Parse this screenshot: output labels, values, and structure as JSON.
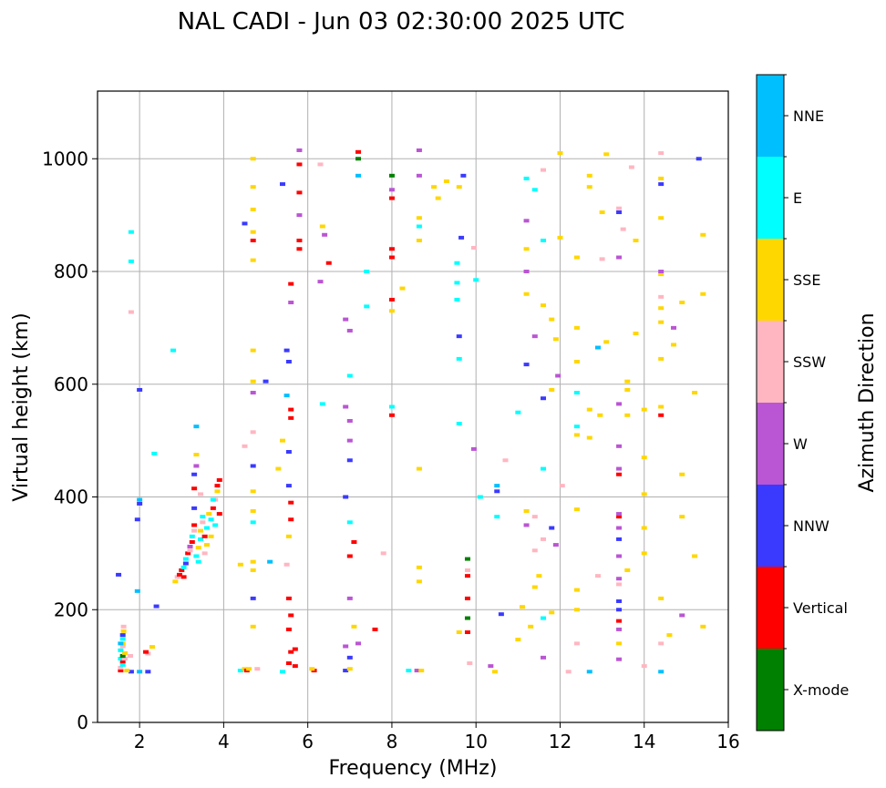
{
  "chart_data": {
    "type": "scatter",
    "title": "NAL CADI - Jun 03 02:30:00 2025 UTC",
    "xlabel": "Frequency (MHz)",
    "ylabel": "Virtual height (km)",
    "xlim": [
      1,
      16
    ],
    "ylim": [
      0,
      1120
    ],
    "xticks": [
      2,
      4,
      6,
      8,
      10,
      12,
      14,
      16
    ],
    "yticks": [
      0,
      200,
      400,
      600,
      800,
      1000
    ],
    "grid": true,
    "colorbar": {
      "label": "Azimuth Direction",
      "categories": [
        "X-mode",
        "Vertical",
        "NNW",
        "W",
        "SSW",
        "SSE",
        "E",
        "NNE"
      ],
      "colors": [
        "#008000",
        "#ff0000",
        "#3a3aff",
        "#ba55d3",
        "#ffb6c1",
        "#ffd700",
        "#00ffff",
        "#00bfff"
      ]
    },
    "point_format": [
      "frequency_MHz",
      "height_km",
      "category_index"
    ],
    "points": [
      [
        1.55,
        92,
        1
      ],
      [
        1.55,
        97,
        4
      ],
      [
        1.6,
        102,
        6
      ],
      [
        1.6,
        108,
        1
      ],
      [
        1.55,
        113,
        6
      ],
      [
        1.65,
        113,
        4
      ],
      [
        1.6,
        118,
        0
      ],
      [
        1.65,
        123,
        5
      ],
      [
        1.55,
        128,
        6
      ],
      [
        1.6,
        135,
        4
      ],
      [
        1.6,
        140,
        5
      ],
      [
        1.55,
        140,
        7
      ],
      [
        1.6,
        148,
        6
      ],
      [
        1.6,
        155,
        2
      ],
      [
        1.62,
        162,
        5
      ],
      [
        1.62,
        170,
        4
      ],
      [
        1.78,
        118,
        4
      ],
      [
        1.8,
        90,
        2
      ],
      [
        1.7,
        92,
        5
      ],
      [
        2.0,
        90,
        7
      ],
      [
        2.2,
        90,
        2
      ],
      [
        2.2,
        122,
        4
      ],
      [
        2.3,
        134,
        5
      ],
      [
        2.15,
        125,
        1
      ],
      [
        1.5,
        262,
        2
      ],
      [
        1.95,
        233,
        7
      ],
      [
        2.4,
        206,
        2
      ],
      [
        1.95,
        360,
        2
      ],
      [
        2.0,
        388,
        2
      ],
      [
        2.0,
        395,
        7
      ],
      [
        2.0,
        590,
        2
      ],
      [
        1.8,
        818,
        6
      ],
      [
        1.8,
        870,
        6
      ],
      [
        1.8,
        728,
        4
      ],
      [
        2.35,
        477,
        6
      ],
      [
        2.8,
        660,
        6
      ],
      [
        2.85,
        250,
        5
      ],
      [
        2.9,
        258,
        4
      ],
      [
        2.95,
        262,
        1
      ],
      [
        3.0,
        270,
        1
      ],
      [
        3.05,
        275,
        6
      ],
      [
        3.1,
        282,
        2
      ],
      [
        3.1,
        290,
        6
      ],
      [
        3.15,
        300,
        1
      ],
      [
        3.2,
        305,
        4
      ],
      [
        3.2,
        312,
        3
      ],
      [
        3.25,
        320,
        1
      ],
      [
        3.25,
        330,
        6
      ],
      [
        3.3,
        340,
        4
      ],
      [
        3.3,
        350,
        1
      ],
      [
        3.35,
        295,
        6
      ],
      [
        3.4,
        310,
        5
      ],
      [
        3.45,
        325,
        6
      ],
      [
        3.45,
        340,
        5
      ],
      [
        3.5,
        355,
        4
      ],
      [
        3.55,
        300,
        4
      ],
      [
        3.55,
        330,
        1
      ],
      [
        3.6,
        315,
        5
      ],
      [
        3.6,
        345,
        6
      ],
      [
        3.65,
        370,
        5
      ],
      [
        3.7,
        330,
        5
      ],
      [
        3.7,
        360,
        6
      ],
      [
        3.75,
        380,
        1
      ],
      [
        3.8,
        350,
        6
      ],
      [
        3.8,
        395,
        4
      ],
      [
        3.85,
        410,
        5
      ],
      [
        3.85,
        420,
        1
      ],
      [
        3.75,
        395,
        6
      ],
      [
        3.9,
        370,
        1
      ],
      [
        3.3,
        415,
        1
      ],
      [
        3.35,
        475,
        5
      ],
      [
        3.35,
        455,
        3
      ],
      [
        3.3,
        440,
        2
      ],
      [
        3.35,
        525,
        7
      ],
      [
        3.45,
        405,
        4
      ],
      [
        3.5,
        365,
        6
      ],
      [
        3.4,
        285,
        6
      ],
      [
        3.05,
        258,
        1
      ],
      [
        3.3,
        380,
        2
      ],
      [
        3.9,
        430,
        1
      ],
      [
        4.4,
        92,
        6
      ],
      [
        4.5,
        95,
        5
      ],
      [
        4.55,
        92,
        1
      ],
      [
        4.6,
        95,
        5
      ],
      [
        4.8,
        95,
        4
      ],
      [
        4.7,
        170,
        5
      ],
      [
        4.7,
        220,
        2
      ],
      [
        4.7,
        270,
        5
      ],
      [
        4.7,
        285,
        5
      ],
      [
        4.7,
        355,
        6
      ],
      [
        4.7,
        375,
        5
      ],
      [
        4.7,
        410,
        5
      ],
      [
        4.7,
        455,
        2
      ],
      [
        4.7,
        515,
        4
      ],
      [
        4.7,
        585,
        3
      ],
      [
        4.7,
        605,
        5
      ],
      [
        4.7,
        660,
        5
      ],
      [
        4.7,
        820,
        5
      ],
      [
        4.7,
        855,
        1
      ],
      [
        4.7,
        870,
        5
      ],
      [
        4.7,
        910,
        5
      ],
      [
        4.7,
        950,
        5
      ],
      [
        4.7,
        1000,
        5
      ],
      [
        4.5,
        885,
        2
      ],
      [
        4.5,
        490,
        4
      ],
      [
        4.4,
        280,
        5
      ],
      [
        5.0,
        605,
        2
      ],
      [
        5.1,
        285,
        7
      ],
      [
        5.4,
        90,
        6
      ],
      [
        5.55,
        105,
        1
      ],
      [
        5.6,
        125,
        1
      ],
      [
        5.55,
        165,
        1
      ],
      [
        5.6,
        190,
        1
      ],
      [
        5.55,
        220,
        1
      ],
      [
        5.5,
        280,
        4
      ],
      [
        5.55,
        330,
        5
      ],
      [
        5.6,
        360,
        1
      ],
      [
        5.6,
        390,
        1
      ],
      [
        5.55,
        420,
        2
      ],
      [
        5.55,
        480,
        2
      ],
      [
        5.6,
        540,
        1
      ],
      [
        5.6,
        555,
        1
      ],
      [
        5.5,
        580,
        7
      ],
      [
        5.55,
        640,
        2
      ],
      [
        5.5,
        660,
        2
      ],
      [
        5.6,
        745,
        3
      ],
      [
        5.6,
        778,
        1
      ],
      [
        5.8,
        840,
        1
      ],
      [
        5.8,
        855,
        1
      ],
      [
        5.8,
        900,
        3
      ],
      [
        5.8,
        940,
        1
      ],
      [
        5.8,
        990,
        1
      ],
      [
        5.8,
        1015,
        3
      ],
      [
        5.4,
        955,
        2
      ],
      [
        5.3,
        450,
        5
      ],
      [
        5.4,
        500,
        5
      ],
      [
        5.7,
        100,
        1
      ],
      [
        5.7,
        130,
        1
      ],
      [
        6.15,
        92,
        1
      ],
      [
        6.1,
        95,
        5
      ],
      [
        6.4,
        865,
        3
      ],
      [
        6.5,
        815,
        1
      ],
      [
        6.35,
        880,
        5
      ],
      [
        6.35,
        565,
        6
      ],
      [
        6.3,
        782,
        3
      ],
      [
        6.3,
        990,
        4
      ],
      [
        6.9,
        92,
        2
      ],
      [
        6.9,
        135,
        3
      ],
      [
        6.9,
        400,
        2
      ],
      [
        6.9,
        560,
        3
      ],
      [
        6.9,
        715,
        3
      ],
      [
        7.0,
        95,
        5
      ],
      [
        7.0,
        115,
        2
      ],
      [
        7.0,
        220,
        3
      ],
      [
        7.0,
        295,
        1
      ],
      [
        7.0,
        355,
        6
      ],
      [
        7.0,
        465,
        2
      ],
      [
        7.0,
        500,
        3
      ],
      [
        7.0,
        535,
        3
      ],
      [
        7.0,
        615,
        6
      ],
      [
        7.0,
        695,
        3
      ],
      [
        7.1,
        170,
        5
      ],
      [
        7.1,
        320,
        1
      ],
      [
        7.2,
        970,
        7
      ],
      [
        7.2,
        1000,
        0
      ],
      [
        7.2,
        1012,
        1
      ],
      [
        7.4,
        800,
        6
      ],
      [
        7.4,
        738,
        6
      ],
      [
        7.6,
        165,
        1
      ],
      [
        7.8,
        300,
        4
      ],
      [
        7.2,
        140,
        3
      ],
      [
        8.0,
        545,
        1
      ],
      [
        8.0,
        560,
        6
      ],
      [
        8.0,
        730,
        5
      ],
      [
        8.0,
        750,
        1
      ],
      [
        8.0,
        825,
        1
      ],
      [
        8.0,
        840,
        1
      ],
      [
        8.0,
        930,
        1
      ],
      [
        8.0,
        945,
        3
      ],
      [
        8.0,
        970,
        0
      ],
      [
        8.25,
        770,
        5
      ],
      [
        8.4,
        92,
        6
      ],
      [
        8.6,
        92,
        3
      ],
      [
        8.7,
        92,
        5
      ],
      [
        8.65,
        250,
        5
      ],
      [
        8.65,
        275,
        5
      ],
      [
        8.65,
        450,
        5
      ],
      [
        8.65,
        855,
        5
      ],
      [
        8.65,
        880,
        6
      ],
      [
        8.65,
        895,
        5
      ],
      [
        8.65,
        970,
        3
      ],
      [
        8.65,
        1015,
        3
      ],
      [
        9.1,
        930,
        5
      ],
      [
        9.0,
        950,
        5
      ],
      [
        9.3,
        960,
        5
      ],
      [
        9.6,
        160,
        5
      ],
      [
        9.6,
        530,
        6
      ],
      [
        9.6,
        645,
        6
      ],
      [
        9.6,
        685,
        2
      ],
      [
        9.55,
        750,
        6
      ],
      [
        9.55,
        780,
        6
      ],
      [
        9.55,
        815,
        6
      ],
      [
        9.65,
        860,
        2
      ],
      [
        9.6,
        950,
        5
      ],
      [
        9.7,
        970,
        2
      ],
      [
        9.85,
        105,
        4
      ],
      [
        9.8,
        160,
        1
      ],
      [
        9.8,
        220,
        1
      ],
      [
        9.8,
        260,
        1
      ],
      [
        9.8,
        270,
        4
      ],
      [
        9.8,
        290,
        0
      ],
      [
        9.8,
        185,
        0
      ],
      [
        9.95,
        485,
        3
      ],
      [
        9.95,
        842,
        4
      ],
      [
        10.0,
        785,
        6
      ],
      [
        10.1,
        400,
        6
      ],
      [
        10.35,
        100,
        3
      ],
      [
        10.45,
        90,
        5
      ],
      [
        10.5,
        365,
        6
      ],
      [
        10.5,
        410,
        2
      ],
      [
        10.5,
        420,
        7
      ],
      [
        10.6,
        192,
        2
      ],
      [
        10.7,
        465,
        4
      ],
      [
        11.0,
        147,
        5
      ],
      [
        11.0,
        550,
        6
      ],
      [
        11.1,
        205,
        5
      ],
      [
        11.2,
        635,
        2
      ],
      [
        11.3,
        170,
        5
      ],
      [
        11.2,
        350,
        3
      ],
      [
        11.2,
        375,
        5
      ],
      [
        11.2,
        760,
        5
      ],
      [
        11.2,
        800,
        3
      ],
      [
        11.2,
        840,
        5
      ],
      [
        11.2,
        890,
        3
      ],
      [
        11.2,
        965,
        6
      ],
      [
        11.4,
        240,
        5
      ],
      [
        11.4,
        305,
        4
      ],
      [
        11.4,
        365,
        4
      ],
      [
        11.5,
        260,
        5
      ],
      [
        11.4,
        685,
        3
      ],
      [
        11.4,
        945,
        6
      ],
      [
        11.6,
        115,
        3
      ],
      [
        11.6,
        185,
        6
      ],
      [
        11.6,
        325,
        4
      ],
      [
        11.6,
        450,
        6
      ],
      [
        11.6,
        575,
        2
      ],
      [
        11.6,
        740,
        5
      ],
      [
        11.6,
        855,
        6
      ],
      [
        11.6,
        980,
        4
      ],
      [
        11.8,
        195,
        5
      ],
      [
        11.8,
        345,
        2
      ],
      [
        11.8,
        590,
        5
      ],
      [
        11.8,
        715,
        5
      ],
      [
        11.9,
        315,
        3
      ],
      [
        11.95,
        615,
        3
      ],
      [
        11.9,
        680,
        5
      ],
      [
        12.0,
        860,
        5
      ],
      [
        12.05,
        420,
        4
      ],
      [
        12.0,
        1010,
        5
      ],
      [
        12.2,
        90,
        4
      ],
      [
        12.4,
        140,
        4
      ],
      [
        12.4,
        200,
        5
      ],
      [
        12.4,
        235,
        5
      ],
      [
        12.4,
        378,
        5
      ],
      [
        12.4,
        510,
        5
      ],
      [
        12.4,
        525,
        6
      ],
      [
        12.4,
        585,
        6
      ],
      [
        12.4,
        640,
        5
      ],
      [
        12.4,
        700,
        5
      ],
      [
        12.4,
        825,
        5
      ],
      [
        12.7,
        90,
        7
      ],
      [
        12.7,
        555,
        5
      ],
      [
        12.7,
        505,
        5
      ],
      [
        12.7,
        970,
        5
      ],
      [
        12.7,
        950,
        5
      ],
      [
        12.9,
        260,
        4
      ],
      [
        12.95,
        545,
        5
      ],
      [
        12.9,
        665,
        7
      ],
      [
        13.0,
        822,
        4
      ],
      [
        13.0,
        905,
        5
      ],
      [
        13.1,
        1008,
        5
      ],
      [
        13.1,
        675,
        5
      ],
      [
        13.4,
        112,
        3
      ],
      [
        13.4,
        140,
        5
      ],
      [
        13.4,
        165,
        3
      ],
      [
        13.4,
        180,
        1
      ],
      [
        13.4,
        200,
        2
      ],
      [
        13.4,
        215,
        2
      ],
      [
        13.4,
        245,
        4
      ],
      [
        13.4,
        255,
        3
      ],
      [
        13.4,
        295,
        3
      ],
      [
        13.4,
        325,
        2
      ],
      [
        13.4,
        345,
        3
      ],
      [
        13.4,
        365,
        1
      ],
      [
        13.4,
        370,
        3
      ],
      [
        13.4,
        440,
        1
      ],
      [
        13.4,
        450,
        3
      ],
      [
        13.4,
        490,
        3
      ],
      [
        13.4,
        565,
        3
      ],
      [
        13.4,
        825,
        3
      ],
      [
        13.4,
        905,
        2
      ],
      [
        13.4,
        912,
        4
      ],
      [
        13.6,
        270,
        5
      ],
      [
        13.6,
        545,
        5
      ],
      [
        13.6,
        590,
        5
      ],
      [
        13.6,
        605,
        5
      ],
      [
        13.5,
        875,
        4
      ],
      [
        13.7,
        985,
        4
      ],
      [
        13.8,
        690,
        5
      ],
      [
        13.8,
        855,
        5
      ],
      [
        14.0,
        100,
        4
      ],
      [
        14.0,
        300,
        5
      ],
      [
        14.0,
        345,
        5
      ],
      [
        14.0,
        405,
        5
      ],
      [
        14.0,
        470,
        5
      ],
      [
        14.0,
        555,
        5
      ],
      [
        14.4,
        90,
        7
      ],
      [
        14.4,
        220,
        5
      ],
      [
        14.4,
        140,
        4
      ],
      [
        14.4,
        545,
        1
      ],
      [
        14.4,
        560,
        5
      ],
      [
        14.4,
        645,
        5
      ],
      [
        14.4,
        710,
        5
      ],
      [
        14.4,
        735,
        5
      ],
      [
        14.4,
        755,
        4
      ],
      [
        14.4,
        795,
        5
      ],
      [
        14.4,
        800,
        3
      ],
      [
        14.4,
        895,
        5
      ],
      [
        14.4,
        955,
        2
      ],
      [
        14.4,
        965,
        5
      ],
      [
        14.4,
        1010,
        4
      ],
      [
        14.6,
        155,
        5
      ],
      [
        14.7,
        700,
        3
      ],
      [
        14.7,
        670,
        5
      ],
      [
        14.9,
        190,
        3
      ],
      [
        14.9,
        365,
        5
      ],
      [
        14.9,
        440,
        5
      ],
      [
        14.9,
        745,
        5
      ],
      [
        15.2,
        295,
        5
      ],
      [
        15.2,
        585,
        5
      ],
      [
        15.4,
        170,
        5
      ],
      [
        15.4,
        760,
        5
      ],
      [
        15.4,
        865,
        5
      ],
      [
        15.3,
        1000,
        2
      ]
    ]
  }
}
